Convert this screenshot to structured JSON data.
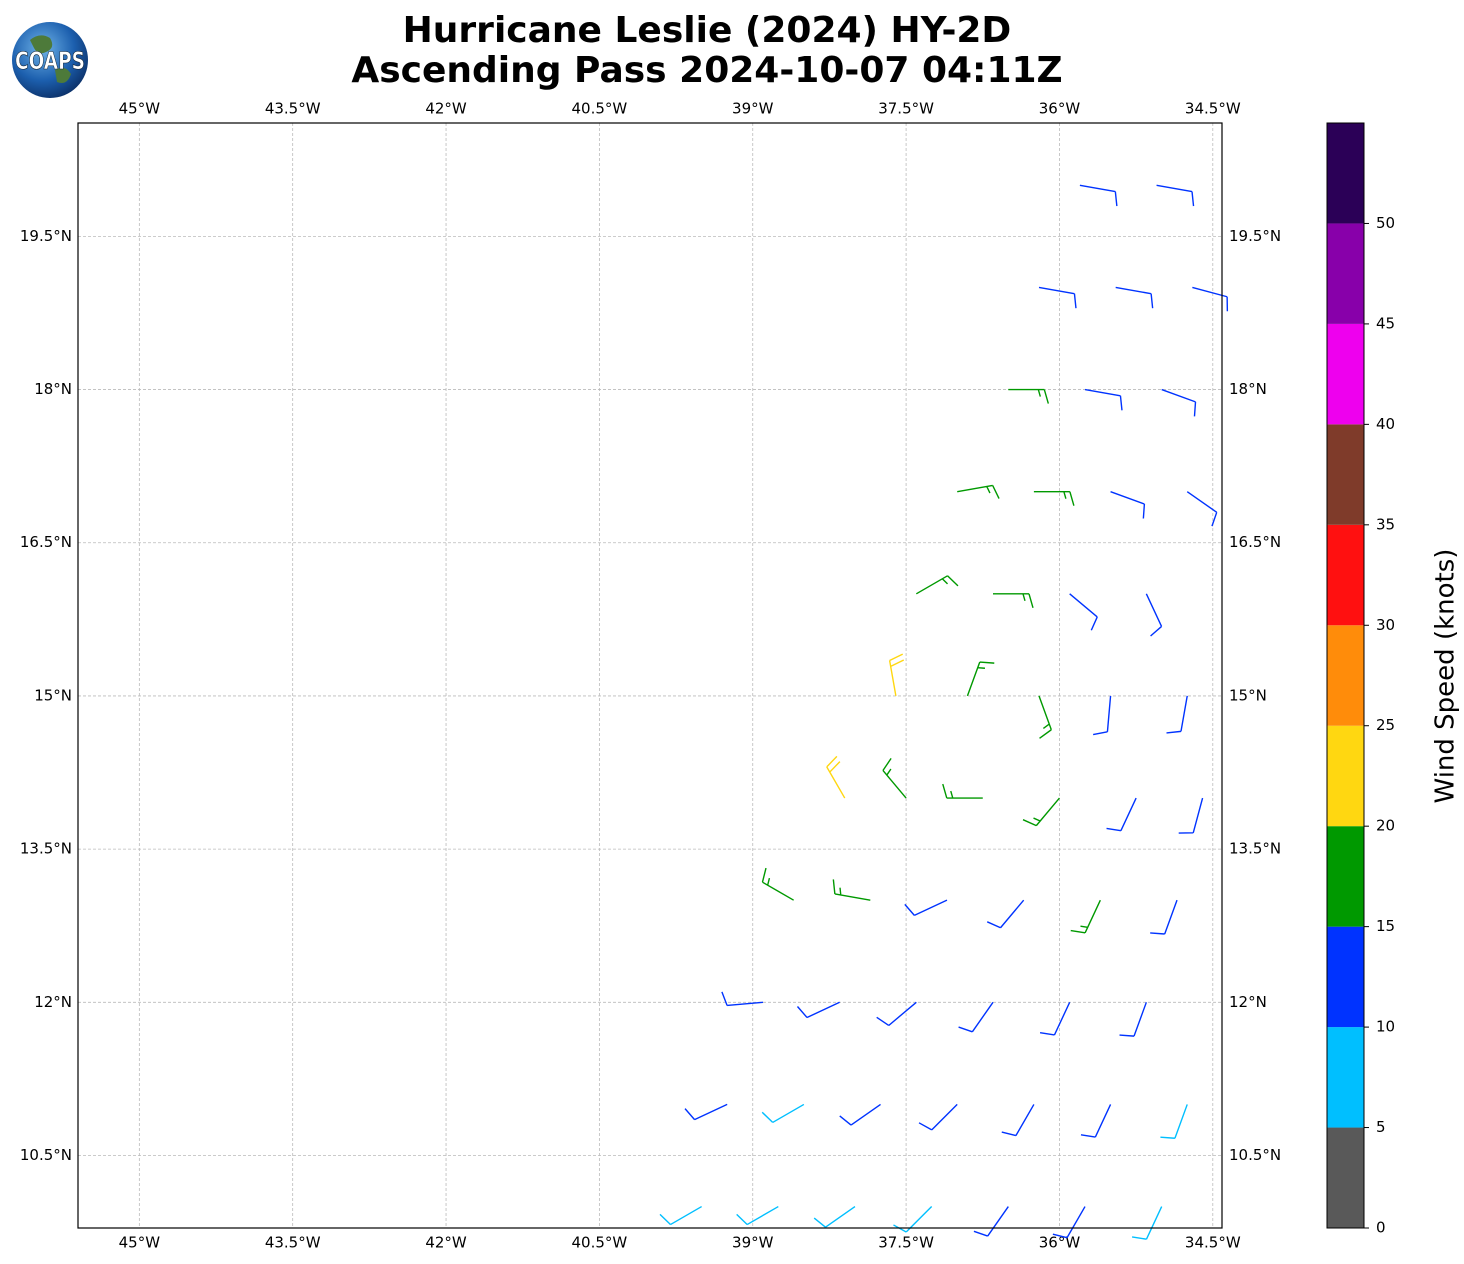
{
  "chart_data": {
    "type": "barbs",
    "title": "Hurricane Leslie (2024) HY-2D",
    "subtitle": "Ascending Pass 2024-10-07 04:11Z",
    "logo_text": "COAPS",
    "xlim": [
      -45.6,
      -34.41
    ],
    "ylim": [
      9.79,
      20.61
    ],
    "xticks": [
      {
        "value": -45,
        "label": "45°W"
      },
      {
        "value": -43.5,
        "label": "43.5°W"
      },
      {
        "value": -42,
        "label": "42°W"
      },
      {
        "value": -40.5,
        "label": "40.5°W"
      },
      {
        "value": -39,
        "label": "39°W"
      },
      {
        "value": -37.5,
        "label": "37.5°W"
      },
      {
        "value": -36,
        "label": "36°W"
      },
      {
        "value": -34.5,
        "label": "34.5°W"
      }
    ],
    "yticks": [
      {
        "value": 10.5,
        "label": "10.5°N"
      },
      {
        "value": 12,
        "label": "12°N"
      },
      {
        "value": 13.5,
        "label": "13.5°N"
      },
      {
        "value": 15,
        "label": "15°N"
      },
      {
        "value": 16.5,
        "label": "16.5°N"
      },
      {
        "value": 18,
        "label": "18°N"
      },
      {
        "value": 19.5,
        "label": "19.5°N"
      }
    ],
    "grid": true,
    "barbs": {
      "lon": [
        -39.5,
        -38.75,
        -38,
        -37.25,
        -36.5,
        -35.75,
        -35,
        -39.25,
        -38.5,
        -37.75,
        -37,
        -36.25,
        -35.5,
        -34.75,
        -38.9,
        -38.15,
        -37.4,
        -36.65,
        -35.9,
        -35.15,
        -38.6,
        -37.85,
        -37.1,
        -36.35,
        -35.6,
        -34.85,
        -38.1,
        -37.5,
        -36.75,
        -36,
        -35.25,
        -34.6,
        -37.6,
        -36.9,
        -36.2,
        -35.5,
        -34.75,
        -37.4,
        -36.65,
        -35.9,
        -35.15,
        -37,
        -36.25,
        -35.5,
        -34.75,
        -36.5,
        -35.75,
        -35,
        -36.2,
        -35.45,
        -34.7,
        -35.8,
        -35.05
      ],
      "lat": [
        10,
        10,
        10,
        10,
        10,
        10,
        10,
        11,
        11,
        11,
        11,
        11,
        11,
        11,
        12,
        12,
        12,
        12,
        12,
        12,
        13,
        13,
        13,
        13,
        13,
        13,
        14,
        14,
        14,
        14,
        14,
        14,
        15,
        15,
        15,
        15,
        15,
        16,
        16,
        16,
        16,
        17,
        17,
        17,
        17,
        18,
        18,
        18,
        19,
        19,
        19,
        20,
        20
      ],
      "speed": [
        8,
        8,
        8,
        8,
        12,
        12,
        8,
        12,
        8,
        12,
        12,
        12,
        12,
        8,
        12,
        12,
        12,
        12,
        12,
        12,
        17,
        17,
        12,
        12,
        17,
        12,
        22,
        17,
        17,
        17,
        12,
        12,
        22,
        17,
        17,
        12,
        12,
        17,
        17,
        12,
        12,
        17,
        17,
        12,
        12,
        17,
        12,
        12,
        12,
        12,
        12,
        12,
        12
      ],
      "direction": [
        240,
        240,
        235,
        225,
        215,
        210,
        205,
        245,
        240,
        235,
        225,
        210,
        205,
        200,
        265,
        245,
        230,
        215,
        205,
        200,
        300,
        280,
        245,
        220,
        205,
        200,
        330,
        320,
        270,
        220,
        205,
        195,
        350,
        20,
        160,
        185,
        190,
        60,
        90,
        130,
        155,
        80,
        90,
        110,
        125,
        90,
        100,
        110,
        100,
        100,
        105,
        100,
        100
      ]
    },
    "colorbar": {
      "label": "Wind Speed (knots)",
      "lim": [
        0,
        55
      ],
      "ticks": [
        0,
        5,
        10,
        15,
        20,
        25,
        30,
        35,
        40,
        45,
        50
      ],
      "colors": [
        "#595959",
        "#00bfff",
        "#0033ff",
        "#009900",
        "#ffd711",
        "#ff8c0a",
        "#ff1010",
        "#7f3b2a",
        "#ee00ee",
        "#8800aa",
        "#2b0057"
      ]
    }
  }
}
